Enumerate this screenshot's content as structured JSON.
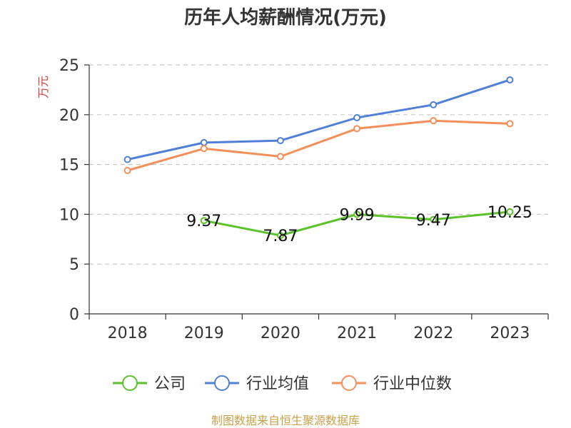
{
  "chart_data": {
    "type": "line",
    "title": "历年人均薪酬情况(万元)",
    "ylabel": "万元",
    "xlabel": "",
    "categories": [
      "2018",
      "2019",
      "2020",
      "2021",
      "2022",
      "2023"
    ],
    "ylim": [
      0,
      25
    ],
    "yticks": [
      "0",
      "5",
      "10",
      "15",
      "20",
      "25"
    ],
    "grid": true,
    "legend_position": "bottom",
    "series": [
      {
        "name": "公司",
        "color": "#5bc229",
        "values": [
          null,
          9.37,
          7.87,
          9.99,
          9.47,
          10.25
        ],
        "labels": [
          "",
          "9.37",
          "7.87",
          "9.99",
          "9.47",
          "10.25"
        ]
      },
      {
        "name": "行业均值",
        "color": "#4f7fd6",
        "values": [
          15.5,
          17.2,
          17.4,
          19.7,
          21.0,
          23.5
        ]
      },
      {
        "name": "行业中位数",
        "color": "#f58f59",
        "values": [
          14.4,
          16.6,
          15.8,
          18.6,
          19.4,
          19.1
        ]
      }
    ]
  },
  "colors": {
    "ylabel": "#e03a3a",
    "source": "#c8a04a",
    "grid": "#c8c8c8",
    "axis": "#333333"
  },
  "source_text": "制图数据来自恒生聚源数据库"
}
